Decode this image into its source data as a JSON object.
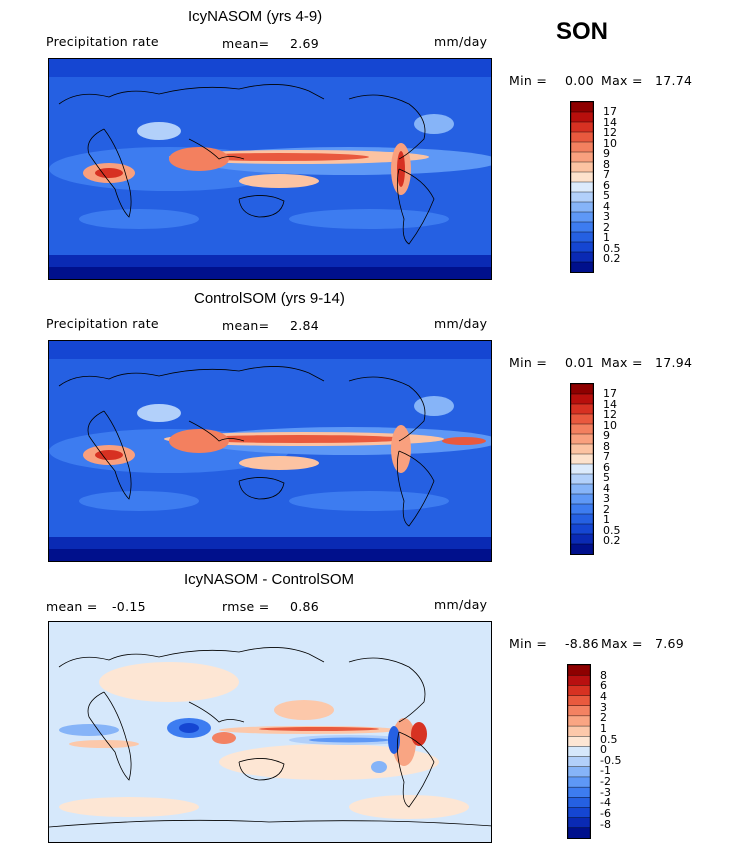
{
  "season": "SON",
  "colors": {
    "prec_levels": [
      "#00108c",
      "#0a2ab4",
      "#1546d2",
      "#2560e2",
      "#3d7cf0",
      "#5e98f6",
      "#86b4f8",
      "#b2d0fa",
      "#dcebfc",
      "#fde2cc",
      "#fcc3a2",
      "#f9a07e",
      "#f3805f",
      "#e9593e",
      "#d73122",
      "#b80f0c",
      "#8e0000"
    ],
    "diff_levels": [
      "#00108c",
      "#0a2ab4",
      "#1546d2",
      "#2560e2",
      "#3d7cf0",
      "#5e98f6",
      "#86b4f8",
      "#b2d0fa",
      "#d6e8fb",
      "#fde6d4",
      "#fcc8aa",
      "#f9a583",
      "#f38262",
      "#e95a3e",
      "#d73222",
      "#b81010",
      "#8e0000"
    ]
  },
  "panels": [
    {
      "title": "IcyNASOM (yrs 4-9)",
      "left_label": "Precipitation rate",
      "stat1_label": "mean=",
      "stat1_value": "2.69",
      "units": "mm/day",
      "min_label": "Min =",
      "min_value": "0.00",
      "max_label": "Max =",
      "max_value": "17.74",
      "colorbar_ticks": [
        "17",
        "14",
        "12",
        "10",
        "9",
        "8",
        "7",
        "6",
        "5",
        "4",
        "3",
        "2",
        "1",
        "0.5",
        "0.2"
      ]
    },
    {
      "title": "ControlSOM (yrs 9-14)",
      "left_label": "Precipitation rate",
      "stat1_label": "mean=",
      "stat1_value": "2.84",
      "units": "mm/day",
      "min_label": "Min =",
      "min_value": "0.01",
      "max_label": "Max =",
      "max_value": "17.94",
      "colorbar_ticks": [
        "17",
        "14",
        "12",
        "10",
        "9",
        "8",
        "7",
        "6",
        "5",
        "4",
        "3",
        "2",
        "1",
        "0.5",
        "0.2"
      ]
    },
    {
      "title": "IcyNASOM - ControlSOM",
      "left_label": "mean =",
      "left_value": "-0.15",
      "stat1_label": "rmse =",
      "stat1_value": "0.86",
      "units": "mm/day",
      "min_label": "Min =",
      "min_value": "-8.86",
      "max_label": "Max =",
      "max_value": "7.69",
      "colorbar_ticks": [
        "8",
        "6",
        "4",
        "3",
        "2",
        "1",
        "0.5",
        "0",
        "-0.5",
        "-1",
        "-2",
        "-3",
        "-4",
        "-6",
        "-8"
      ]
    }
  ]
}
